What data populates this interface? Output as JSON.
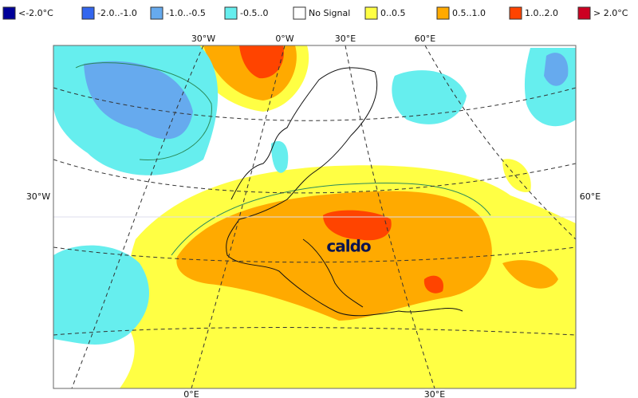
{
  "legend": [
    {
      "label": "<-2.0°C",
      "color": "#000099"
    },
    {
      "label": "-2.0..-1.0",
      "color": "#3366ee"
    },
    {
      "label": "-1.0..-0.5",
      "color": "#66aaee"
    },
    {
      "label": "-0.5..0",
      "color": "#66eeee"
    },
    {
      "label": "No Signal",
      "color": "#ffffff"
    },
    {
      "label": "0..0.5",
      "color": "#ffff44"
    },
    {
      "label": "0.5..1.0",
      "color": "#ffaa00"
    },
    {
      "label": "1.0..2.0",
      "color": "#ff4400"
    },
    {
      "label": "> 2.0°C",
      "color": "#cc0022"
    }
  ],
  "grid_labels": {
    "top": [
      "30°W",
      "0°W",
      "30°E",
      "60°E"
    ],
    "left": "30°W",
    "right": "60°E",
    "bottom": [
      "0°E",
      "30°E"
    ]
  },
  "annotation": "caldo"
}
